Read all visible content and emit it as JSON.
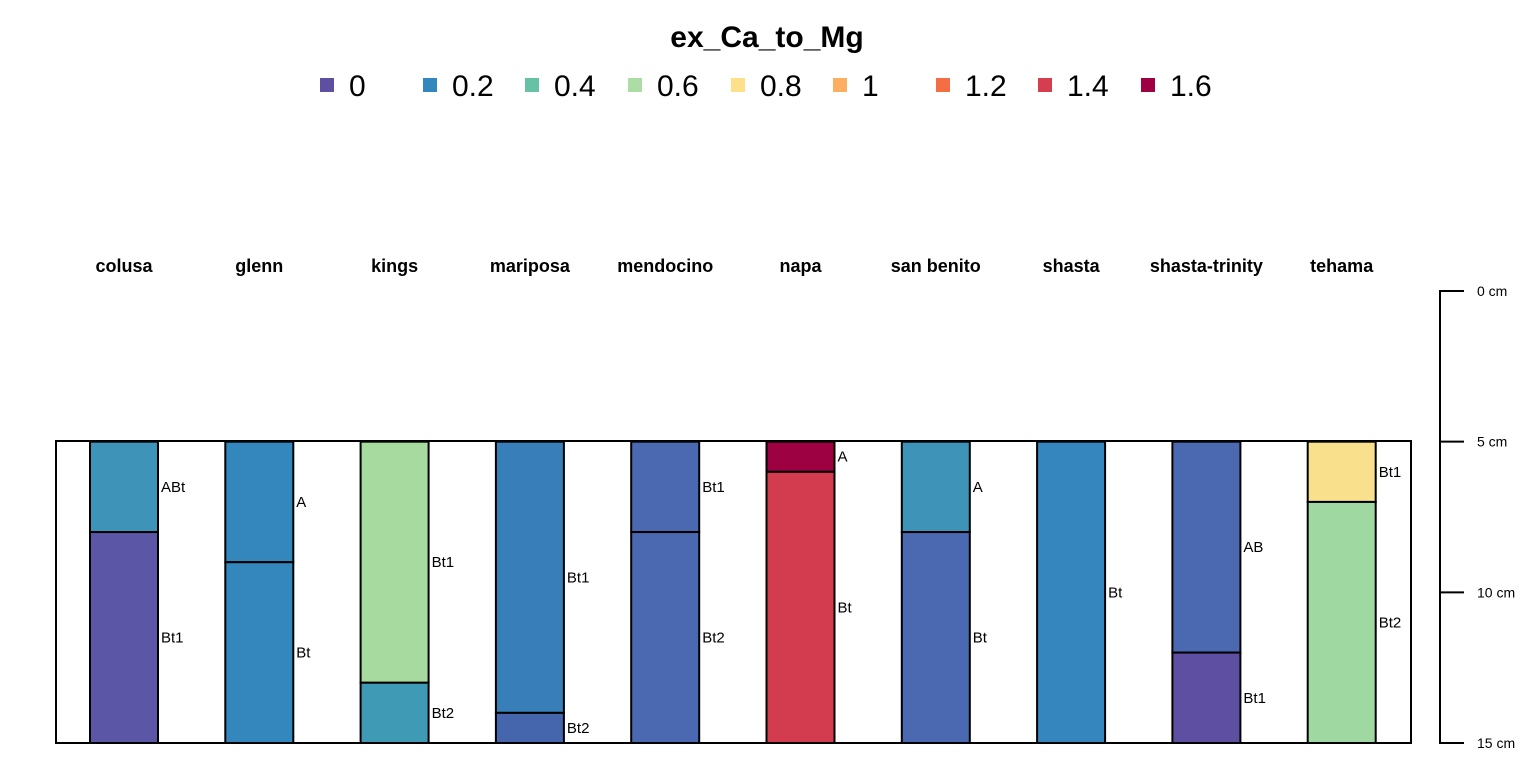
{
  "chart_data": {
    "type": "soil-profile",
    "legend": {
      "title": "ex_Ca_to_Mg",
      "entries": [
        {
          "label": "0",
          "color": "#5e4fa2"
        },
        {
          "label": "0.2",
          "color": "#3288bd"
        },
        {
          "label": "0.4",
          "color": "#66c2a5"
        },
        {
          "label": "0.6",
          "color": "#abdda4"
        },
        {
          "label": "0.8",
          "color": "#fee08b"
        },
        {
          "label": "1",
          "color": "#fdae61"
        },
        {
          "label": "1.2",
          "color": "#f46d43"
        },
        {
          "label": "1.4",
          "color": "#d53e4f"
        },
        {
          "label": "1.6",
          "color": "#9e0142"
        }
      ]
    },
    "depth_axis": {
      "min": 0,
      "max": 15,
      "unit": "cm",
      "ticks": [
        {
          "value": 0,
          "label": "0 cm"
        },
        {
          "value": 5,
          "label": "5 cm"
        },
        {
          "value": 10,
          "label": "10 cm"
        },
        {
          "value": 15,
          "label": "15 cm"
        }
      ]
    },
    "profiles": [
      {
        "name": "colusa",
        "horizons": [
          {
            "name": "ABt",
            "top": 5,
            "bottom": 8,
            "color": "#3d93b8"
          },
          {
            "name": "Bt1",
            "top": 8,
            "bottom": 15,
            "color": "#5b57a6"
          }
        ]
      },
      {
        "name": "glenn",
        "horizons": [
          {
            "name": "A",
            "top": 5,
            "bottom": 9,
            "color": "#3487bc"
          },
          {
            "name": "Bt",
            "top": 9,
            "bottom": 15,
            "color": "#3487bc"
          }
        ]
      },
      {
        "name": "kings",
        "horizons": [
          {
            "name": "Bt1",
            "top": 5,
            "bottom": 13,
            "color": "#a6da9f"
          },
          {
            "name": "Bt2",
            "top": 13,
            "bottom": 15,
            "color": "#3e9ab5"
          }
        ]
      },
      {
        "name": "mariposa",
        "horizons": [
          {
            "name": "Bt1",
            "top": 5,
            "bottom": 14,
            "color": "#387fb9"
          },
          {
            "name": "Bt2",
            "top": 14,
            "bottom": 15,
            "color": "#4565ac"
          }
        ]
      },
      {
        "name": "mendocino",
        "horizons": [
          {
            "name": "Bt1",
            "top": 5,
            "bottom": 8,
            "color": "#4b69b0"
          },
          {
            "name": "Bt2",
            "top": 8,
            "bottom": 15,
            "color": "#4b69b0"
          }
        ]
      },
      {
        "name": "napa",
        "horizons": [
          {
            "name": "A",
            "top": 5,
            "bottom": 6,
            "color": "#9e0142"
          },
          {
            "name": "Bt",
            "top": 6,
            "bottom": 15,
            "color": "#d23c4e"
          }
        ]
      },
      {
        "name": "san benito",
        "horizons": [
          {
            "name": "A",
            "top": 5,
            "bottom": 8,
            "color": "#3d93b8"
          },
          {
            "name": "Bt",
            "top": 8,
            "bottom": 15,
            "color": "#4b69b0"
          }
        ]
      },
      {
        "name": "shasta",
        "horizons": [
          {
            "name": "Bt",
            "top": 5,
            "bottom": 15,
            "color": "#3586be"
          }
        ]
      },
      {
        "name": "shasta-trinity",
        "horizons": [
          {
            "name": "AB",
            "top": 5,
            "bottom": 12,
            "color": "#4b69b0"
          },
          {
            "name": "Bt1",
            "top": 12,
            "bottom": 15,
            "color": "#5e4fa2"
          }
        ]
      },
      {
        "name": "tehama",
        "horizons": [
          {
            "name": "Bt1",
            "top": 5,
            "bottom": 7,
            "color": "#f9e08c"
          },
          {
            "name": "Bt2",
            "top": 7,
            "bottom": 15,
            "color": "#9fd8a0"
          }
        ]
      }
    ]
  }
}
